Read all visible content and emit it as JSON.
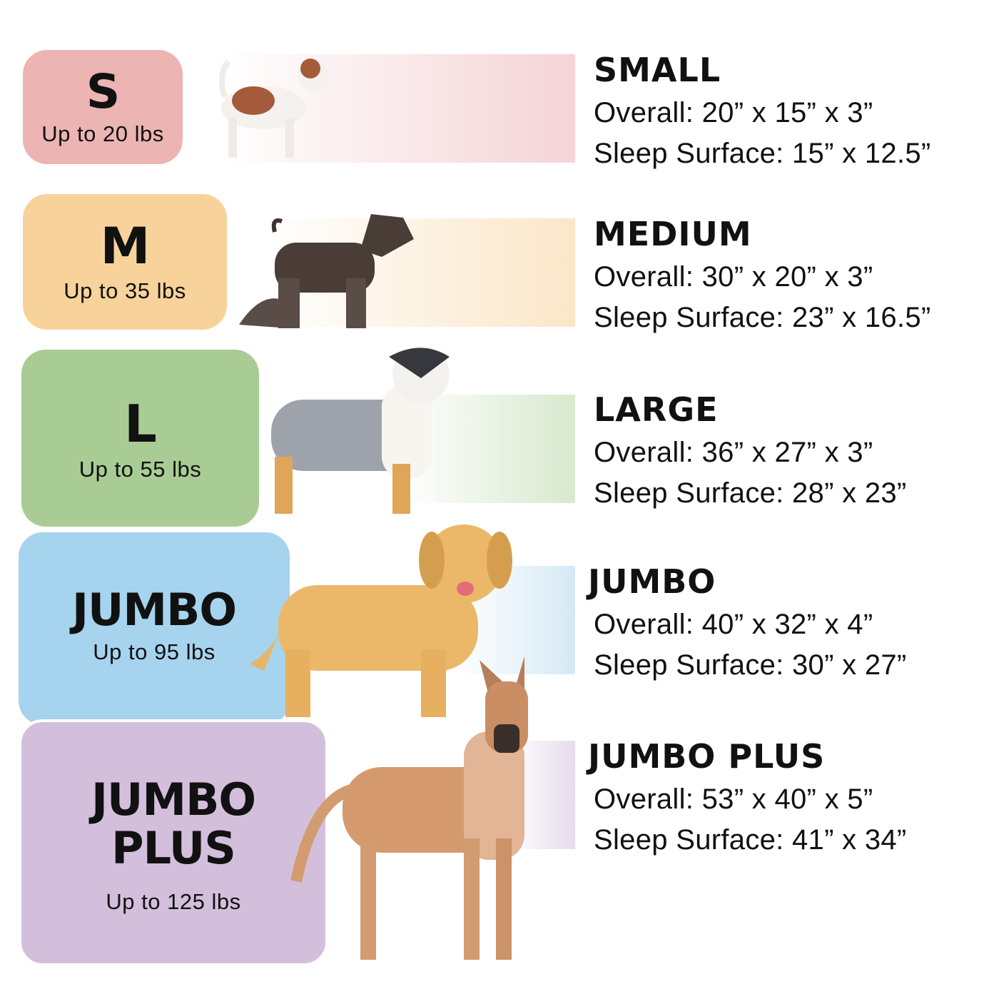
{
  "sizes": [
    {
      "code": "S",
      "weight": "Up to 20 lbs",
      "title": "SMALL",
      "overall": "Overall: 20” x 15” x 3”",
      "sleep": "Sleep Surface: 15” x 12.5”",
      "color": "#ecb4b3"
    },
    {
      "code": "M",
      "weight": "Up to 35 lbs",
      "title": "MEDIUM",
      "overall": "Overall: 30” x 20” x 3”",
      "sleep": "Sleep Surface: 23” x 16.5”",
      "color": "#f7d39b"
    },
    {
      "code": "L",
      "weight": "Up to 55 lbs",
      "title": "LARGE",
      "overall": "Overall: 36” x 27” x 3”",
      "sleep": "Sleep Surface: 28” x 23”",
      "color": "#a8cc94"
    },
    {
      "code": "JUMBO",
      "weight": "Up to 95 lbs",
      "title": "JUMBO",
      "overall": "Overall: 40” x 32” x 4”",
      "sleep": "Sleep Surface: 30” x 27”",
      "color": "#a6d3ee"
    },
    {
      "code_line1": "JUMBO",
      "code_line2": "PLUS",
      "weight": "Up to 125 lbs",
      "title": "JUMBO PLUS",
      "overall": "Overall: 53” x 40” x 5”",
      "sleep": "Sleep Surface: 41” x 34”",
      "color": "#d3bfdc"
    }
  ]
}
